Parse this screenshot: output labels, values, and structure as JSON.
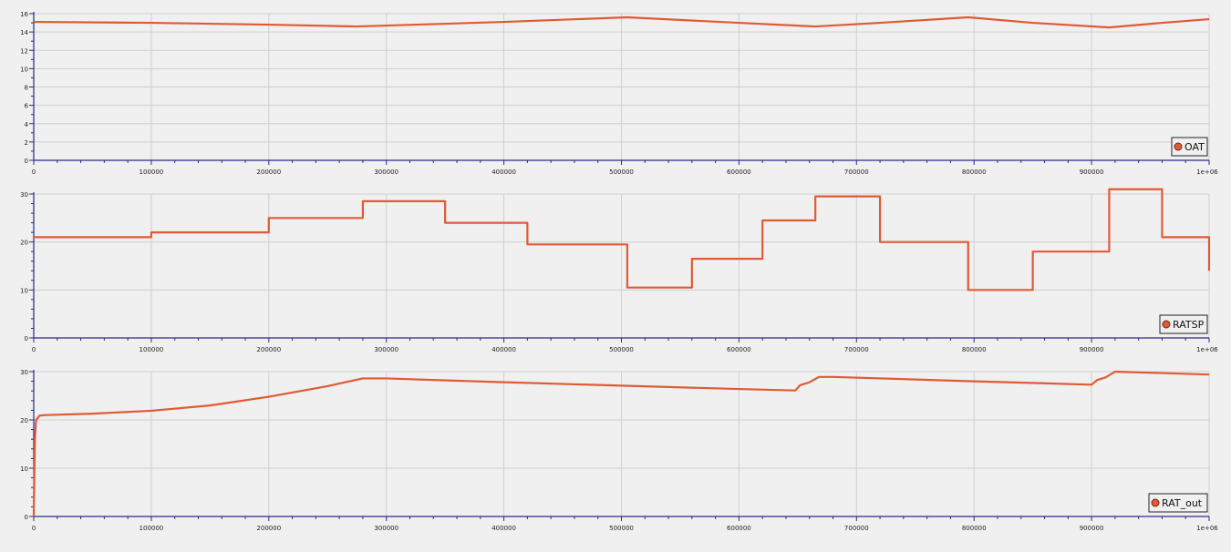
{
  "chart_data": [
    {
      "type": "line",
      "xlim": [
        0,
        1000000
      ],
      "ylim": [
        0,
        16
      ],
      "x_ticks": [
        "0",
        "100000",
        "200000",
        "300000",
        "400000",
        "500000",
        "600000",
        "700000",
        "800000",
        "900000",
        "1e+06"
      ],
      "y_ticks": [
        "0",
        "2",
        "4",
        "6",
        "8",
        "10",
        "12",
        "14",
        "16"
      ],
      "grid": true,
      "legend_position": "bottom-right",
      "series": [
        {
          "name": "OAT",
          "step": false,
          "x": [
            0,
            100000,
            200000,
            275000,
            400000,
            505000,
            600000,
            665000,
            720000,
            795000,
            850000,
            915000,
            960000,
            1000000
          ],
          "y": [
            15.1,
            15.0,
            14.8,
            14.6,
            15.1,
            15.6,
            15.0,
            14.6,
            15.0,
            15.6,
            15.0,
            14.5,
            15.0,
            15.4
          ]
        }
      ]
    },
    {
      "type": "line",
      "xlim": [
        0,
        1000000
      ],
      "ylim": [
        0,
        30
      ],
      "x_ticks": [
        "0",
        "100000",
        "200000",
        "300000",
        "400000",
        "500000",
        "600000",
        "700000",
        "800000",
        "900000",
        "1e+06"
      ],
      "y_ticks": [
        "0",
        "10",
        "20",
        "30"
      ],
      "grid": true,
      "legend_position": "bottom-right",
      "series": [
        {
          "name": "RATSP",
          "step": true,
          "x": [
            0,
            100000,
            200000,
            280000,
            350000,
            420000,
            505000,
            560000,
            620000,
            665000,
            720000,
            795000,
            850000,
            915000,
            960000,
            1000000
          ],
          "y": [
            21,
            22,
            25,
            28.5,
            24,
            19.5,
            10.5,
            16.5,
            24.5,
            29.5,
            20,
            10,
            18,
            31,
            21,
            14
          ]
        }
      ]
    },
    {
      "type": "line",
      "xlim": [
        0,
        1000000
      ],
      "ylim": [
        0,
        30
      ],
      "x_ticks": [
        "0",
        "100000",
        "200000",
        "300000",
        "400000",
        "500000",
        "600000",
        "700000",
        "800000",
        "900000",
        "1e+06"
      ],
      "y_ticks": [
        "0",
        "10",
        "20",
        "30"
      ],
      "grid": true,
      "legend_position": "bottom-right",
      "series": [
        {
          "name": "RAT_out",
          "step": false,
          "x": [
            0,
            1000,
            2000,
            5000,
            10000,
            50000,
            100000,
            150000,
            200000,
            250000,
            280000,
            300000,
            400000,
            500000,
            600000,
            648000,
            652000,
            660000,
            668000,
            680000,
            800000,
            900000,
            905000,
            912000,
            920000,
            1000000
          ],
          "y": [
            0,
            16,
            20,
            20.9,
            21,
            21.3,
            21.9,
            23,
            24.8,
            27,
            28.6,
            28.6,
            27.8,
            27.1,
            26.4,
            26.1,
            27.2,
            27.8,
            28.9,
            28.9,
            28,
            27.3,
            28.3,
            28.8,
            30,
            29.4
          ]
        }
      ]
    }
  ],
  "colors": {
    "series": "#e05a35",
    "marker_fill": "#e05a35",
    "marker_stroke": "#6b2a14",
    "grid": "#cfcfcf",
    "axis": "#2a2a8a",
    "background": "#f0f0f0"
  }
}
